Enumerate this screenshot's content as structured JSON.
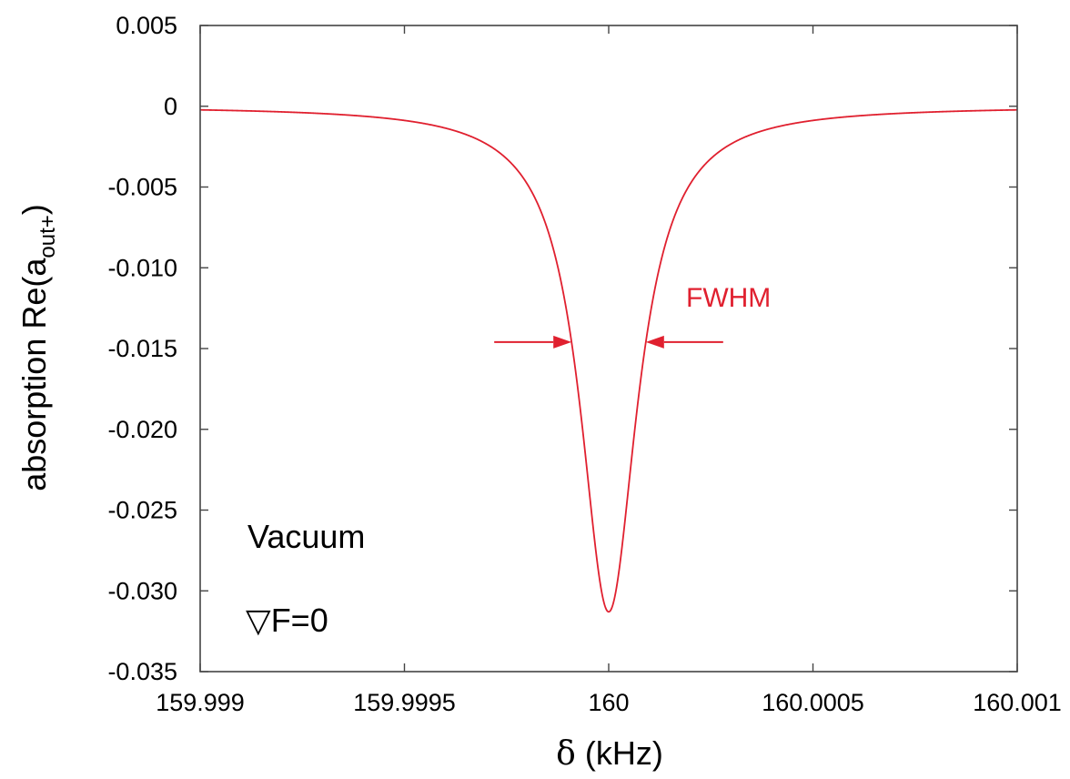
{
  "chart_data": {
    "type": "line",
    "xlabel_symbol": "δ",
    "xlabel_rest": " (kHz)",
    "ylabel_main": "absorption Re(a",
    "ylabel_sub": "out+",
    "ylabel_close": ")",
    "xlim": [
      159.999,
      160.001
    ],
    "ylim": [
      -0.035,
      0.005
    ],
    "x_ticks": [
      159.999,
      159.9995,
      160,
      160.0005,
      160.001
    ],
    "x_tick_labels": [
      "159.999",
      "159.9995",
      "160",
      "160.0005",
      "160.001"
    ],
    "y_ticks": [
      0.005,
      0,
      -0.005,
      -0.01,
      -0.015,
      -0.02,
      -0.025,
      -0.03,
      -0.035
    ],
    "y_tick_labels": [
      "0.005",
      "0",
      "-0.005",
      "-0.010",
      "-0.015",
      "-0.020",
      "-0.025",
      "-0.030",
      "-0.035"
    ],
    "grid": false,
    "series": [
      {
        "color": "#e0202f",
        "model": "lorentzian",
        "center": 160.0,
        "peak": -0.0313,
        "fwhm": 0.00017,
        "x": [
          159.999,
          159.9993,
          159.9995,
          159.9997,
          159.9998,
          159.99985,
          159.9999,
          159.99992,
          159.99995,
          159.99998,
          160.0,
          160.00002,
          160.00005,
          160.00008,
          160.0001,
          160.00015,
          160.0002,
          160.0003,
          160.0005,
          160.0007,
          160.001
        ],
        "y": [
          -0.0002,
          -0.0006,
          -0.0013,
          -0.004,
          -0.0083,
          -0.0121,
          -0.0165,
          -0.02,
          -0.0255,
          -0.03,
          -0.0313,
          -0.03,
          -0.0255,
          -0.02,
          -0.0165,
          -0.0121,
          -0.0083,
          -0.004,
          -0.0013,
          -0.0006,
          -0.0002
        ]
      }
    ],
    "annotations": {
      "fwhm_label": "FWHM",
      "fwhm_color": "#e0202f",
      "fwhm_level": -0.0146,
      "medium_label": "Vacuum",
      "gradient_symbol": "▽",
      "gradient_label": "F=0"
    }
  }
}
